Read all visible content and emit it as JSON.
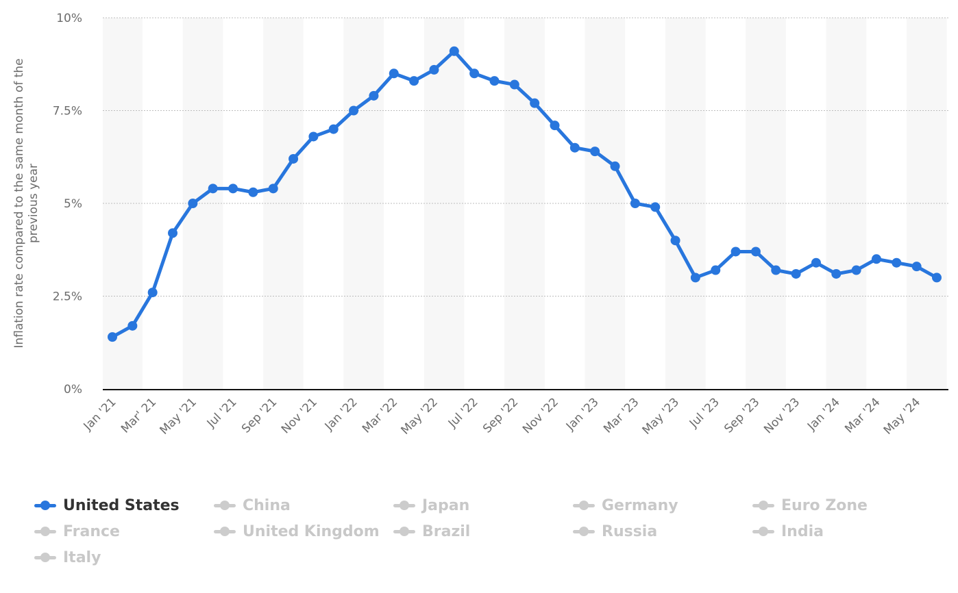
{
  "colors": {
    "active": "#2876DD",
    "inactive": "#cccccc",
    "active_text": "#333333",
    "inactive_text": "#c8c8c8",
    "grid": "#bdbdbd",
    "band": "#f7f7f7",
    "axis_line": "#111111"
  },
  "chart_data": {
    "type": "line",
    "ylabel": "Inflation rate compared to the same month of the previous year",
    "xlabel": "",
    "ylim": [
      0,
      10
    ],
    "yticks": [
      "0%",
      "2.5%",
      "5%",
      "7.5%",
      "10%"
    ],
    "ytick_values": [
      0,
      2.5,
      5,
      7.5,
      10
    ],
    "grid": true,
    "legend_position": "bottom",
    "x": [
      "Jan '21",
      "Feb '21",
      "Mar' 21",
      "Apr '21",
      "May '21",
      "Jun '21",
      "Jul '21",
      "Aug '21",
      "Sep '21",
      "Oct '21",
      "Nov '21",
      "Dec '21",
      "Jan '22",
      "Feb '22",
      "Mar '22",
      "Apr '22",
      "May '22",
      "Jun '22",
      "Jul '22",
      "Aug '22",
      "Sep '22",
      "Oct '22",
      "Nov '22",
      "Dec '22",
      "Jan '23",
      "Feb '23",
      "Mar '23",
      "Apr '23",
      "May '23",
      "Jun '23",
      "Jul '23",
      "Aug '23",
      "Sep '23",
      "Oct '23",
      "Nov '23",
      "Dec '23",
      "Jan '24",
      "Feb '24",
      "Mar '24",
      "Apr '24",
      "May '24",
      "Jun '24"
    ],
    "xtick_labels": [
      "Jan '21",
      "",
      "Mar' 21",
      "",
      "May '21",
      "",
      "Jul '21",
      "",
      "Sep '21",
      "",
      "Nov '21",
      "",
      "Jan '22",
      "",
      "Mar '22",
      "",
      "May '22",
      "",
      "Jul '22",
      "",
      "Sep '22",
      "",
      "Nov '22",
      "",
      "Jan '23",
      "",
      "Mar '23",
      "",
      "May '23",
      "",
      "Jul '23",
      "",
      "Sep '23",
      "",
      "Nov '23",
      "",
      "Jan '24",
      "",
      "Mar '24",
      "",
      "May '24",
      ""
    ],
    "series": [
      {
        "name": "United States",
        "values": [
          1.4,
          1.7,
          2.6,
          4.2,
          5.0,
          5.4,
          5.4,
          5.3,
          5.4,
          6.2,
          6.8,
          7.0,
          7.5,
          7.9,
          8.5,
          8.3,
          8.6,
          9.1,
          8.5,
          8.3,
          8.2,
          7.7,
          7.1,
          6.5,
          6.4,
          6.0,
          5.0,
          4.9,
          4.0,
          3.0,
          3.2,
          3.7,
          3.7,
          3.2,
          3.1,
          3.4,
          3.1,
          3.2,
          3.5,
          3.4,
          3.3,
          3.0
        ]
      }
    ]
  },
  "legend": [
    {
      "label": "United States",
      "active": true
    },
    {
      "label": "China",
      "active": false
    },
    {
      "label": "Japan",
      "active": false
    },
    {
      "label": "Germany",
      "active": false
    },
    {
      "label": "Euro Zone",
      "active": false
    },
    {
      "label": "France",
      "active": false
    },
    {
      "label": "United Kingdom",
      "active": false
    },
    {
      "label": "Brazil",
      "active": false
    },
    {
      "label": "Russia",
      "active": false
    },
    {
      "label": "India",
      "active": false
    },
    {
      "label": "Italy",
      "active": false
    }
  ]
}
